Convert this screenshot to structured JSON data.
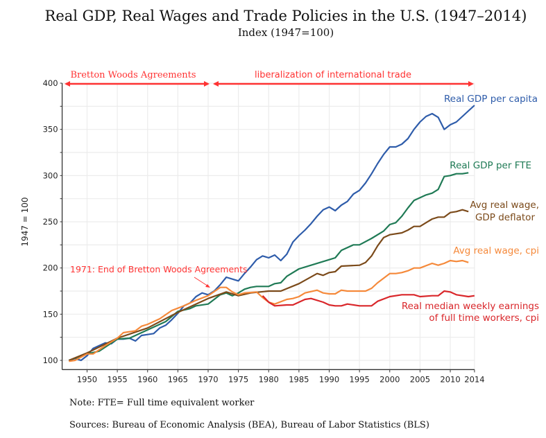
{
  "chart_data": {
    "type": "line",
    "title": "Real GDP, Real Wages and Trade Policies in the U.S. (1947–2014)",
    "subtitle": "Index (1947=100)",
    "ylabel": "1947 = 100",
    "xlabel": "",
    "xlim": [
      1946,
      2014
    ],
    "ylim": [
      90,
      400
    ],
    "x_ticks": [
      1950,
      1955,
      1960,
      1965,
      1970,
      1975,
      1980,
      1985,
      1990,
      1995,
      2000,
      2005,
      2010,
      2014
    ],
    "y_ticks": [
      100,
      150,
      200,
      250,
      300,
      350,
      400
    ],
    "grid": true,
    "series": [
      {
        "name": "Real GDP per capita",
        "color": "#2e5caa",
        "points": [
          [
            1947,
            100
          ],
          [
            1948,
            102
          ],
          [
            1949,
            100
          ],
          [
            1950,
            105
          ],
          [
            1951,
            113
          ],
          [
            1952,
            116
          ],
          [
            1953,
            119
          ],
          [
            1954,
            118
          ],
          [
            1955,
            123
          ],
          [
            1956,
            123
          ],
          [
            1957,
            124
          ],
          [
            1958,
            121
          ],
          [
            1959,
            127
          ],
          [
            1960,
            128
          ],
          [
            1961,
            129
          ],
          [
            1962,
            135
          ],
          [
            1963,
            138
          ],
          [
            1964,
            144
          ],
          [
            1965,
            151
          ],
          [
            1966,
            159
          ],
          [
            1967,
            162
          ],
          [
            1968,
            169
          ],
          [
            1969,
            173
          ],
          [
            1970,
            171
          ],
          [
            1971,
            175
          ],
          [
            1972,
            182
          ],
          [
            1973,
            190
          ],
          [
            1974,
            188
          ],
          [
            1975,
            186
          ],
          [
            1976,
            194
          ],
          [
            1977,
            201
          ],
          [
            1978,
            209
          ],
          [
            1979,
            213
          ],
          [
            1980,
            211
          ],
          [
            1981,
            214
          ],
          [
            1982,
            208
          ],
          [
            1983,
            215
          ],
          [
            1984,
            228
          ],
          [
            1985,
            235
          ],
          [
            1986,
            241
          ],
          [
            1987,
            248
          ],
          [
            1988,
            256
          ],
          [
            1989,
            263
          ],
          [
            1990,
            266
          ],
          [
            1991,
            262
          ],
          [
            1992,
            268
          ],
          [
            1993,
            272
          ],
          [
            1994,
            280
          ],
          [
            1995,
            284
          ],
          [
            1996,
            292
          ],
          [
            1997,
            302
          ],
          [
            1998,
            313
          ],
          [
            1999,
            323
          ],
          [
            2000,
            331
          ],
          [
            2001,
            331
          ],
          [
            2002,
            334
          ],
          [
            2003,
            340
          ],
          [
            2004,
            350
          ],
          [
            2005,
            358
          ],
          [
            2006,
            364
          ],
          [
            2007,
            367
          ],
          [
            2008,
            363
          ],
          [
            2009,
            350
          ],
          [
            2010,
            355
          ],
          [
            2011,
            358
          ],
          [
            2012,
            364
          ],
          [
            2013,
            370
          ],
          [
            2014,
            376
          ]
        ]
      },
      {
        "name": "Real GDP per FTE",
        "color": "#1f7a55",
        "points": [
          [
            1947,
            100
          ],
          [
            1950,
            107
          ],
          [
            1952,
            110
          ],
          [
            1955,
            123
          ],
          [
            1957,
            124
          ],
          [
            1960,
            133
          ],
          [
            1963,
            142
          ],
          [
            1965,
            153
          ],
          [
            1967,
            156
          ],
          [
            1968,
            159
          ],
          [
            1970,
            161
          ],
          [
            1972,
            171
          ],
          [
            1973,
            173
          ],
          [
            1974,
            170
          ],
          [
            1975,
            173
          ],
          [
            1976,
            177
          ],
          [
            1977,
            179
          ],
          [
            1978,
            180
          ],
          [
            1980,
            180
          ],
          [
            1981,
            183
          ],
          [
            1982,
            184
          ],
          [
            1983,
            191
          ],
          [
            1985,
            199
          ],
          [
            1987,
            203
          ],
          [
            1990,
            209
          ],
          [
            1991,
            211
          ],
          [
            1992,
            219
          ],
          [
            1994,
            225
          ],
          [
            1995,
            225
          ],
          [
            1997,
            232
          ],
          [
            1999,
            240
          ],
          [
            2000,
            247
          ],
          [
            2001,
            249
          ],
          [
            2002,
            256
          ],
          [
            2003,
            265
          ],
          [
            2004,
            273
          ],
          [
            2005,
            276
          ],
          [
            2006,
            279
          ],
          [
            2007,
            281
          ],
          [
            2008,
            285
          ],
          [
            2009,
            299
          ],
          [
            2010,
            300
          ],
          [
            2011,
            302
          ],
          [
            2012,
            302
          ],
          [
            2013,
            303
          ]
        ]
      },
      {
        "name": "Avg real wage, GDP deflator",
        "color": "#7b4a1a",
        "points": [
          [
            1947,
            100
          ],
          [
            1950,
            108
          ],
          [
            1955,
            124
          ],
          [
            1960,
            135
          ],
          [
            1965,
            152
          ],
          [
            1970,
            167
          ],
          [
            1973,
            174
          ],
          [
            1975,
            170
          ],
          [
            1977,
            173
          ],
          [
            1980,
            175
          ],
          [
            1982,
            175
          ],
          [
            1985,
            183
          ],
          [
            1988,
            194
          ],
          [
            1989,
            192
          ],
          [
            1990,
            195
          ],
          [
            1991,
            196
          ],
          [
            1992,
            202
          ],
          [
            1995,
            203
          ],
          [
            1996,
            206
          ],
          [
            1997,
            213
          ],
          [
            1998,
            224
          ],
          [
            1999,
            233
          ],
          [
            2000,
            236
          ],
          [
            2002,
            238
          ],
          [
            2003,
            241
          ],
          [
            2004,
            245
          ],
          [
            2005,
            245
          ],
          [
            2006,
            249
          ],
          [
            2007,
            253
          ],
          [
            2008,
            255
          ],
          [
            2009,
            255
          ],
          [
            2010,
            260
          ],
          [
            2011,
            261
          ],
          [
            2012,
            263
          ],
          [
            2013,
            261
          ]
        ]
      },
      {
        "name": "Avg real wage, cpi",
        "color": "#f5893a",
        "points": [
          [
            1947,
            99
          ],
          [
            1948,
            100
          ],
          [
            1950,
            107
          ],
          [
            1951,
            107
          ],
          [
            1953,
            116
          ],
          [
            1955,
            124
          ],
          [
            1956,
            130
          ],
          [
            1958,
            132
          ],
          [
            1959,
            137
          ],
          [
            1960,
            139
          ],
          [
            1962,
            145
          ],
          [
            1964,
            154
          ],
          [
            1966,
            159
          ],
          [
            1968,
            165
          ],
          [
            1970,
            170
          ],
          [
            1972,
            179
          ],
          [
            1973,
            179
          ],
          [
            1974,
            174
          ],
          [
            1975,
            171
          ],
          [
            1976,
            173
          ],
          [
            1978,
            174
          ],
          [
            1979,
            168
          ],
          [
            1980,
            163
          ],
          [
            1981,
            161
          ],
          [
            1983,
            166
          ],
          [
            1984,
            167
          ],
          [
            1985,
            169
          ],
          [
            1986,
            173
          ],
          [
            1988,
            176
          ],
          [
            1989,
            173
          ],
          [
            1990,
            172
          ],
          [
            1991,
            172
          ],
          [
            1992,
            176
          ],
          [
            1993,
            175
          ],
          [
            1996,
            175
          ],
          [
            1997,
            178
          ],
          [
            1998,
            184
          ],
          [
            2000,
            194
          ],
          [
            2001,
            194
          ],
          [
            2002,
            195
          ],
          [
            2003,
            197
          ],
          [
            2004,
            200
          ],
          [
            2005,
            200
          ],
          [
            2007,
            205
          ],
          [
            2008,
            203
          ],
          [
            2009,
            205
          ],
          [
            2010,
            208
          ],
          [
            2011,
            207
          ],
          [
            2012,
            208
          ],
          [
            2013,
            206
          ]
        ]
      },
      {
        "name": "Real median weekly earnings of full time workers, cpi",
        "color": "#d9262a",
        "points": [
          [
            1979,
            170
          ],
          [
            1980,
            163
          ],
          [
            1981,
            159
          ],
          [
            1983,
            160
          ],
          [
            1984,
            160
          ],
          [
            1985,
            163
          ],
          [
            1986,
            166
          ],
          [
            1987,
            167
          ],
          [
            1989,
            163
          ],
          [
            1990,
            160
          ],
          [
            1991,
            159
          ],
          [
            1992,
            159
          ],
          [
            1993,
            161
          ],
          [
            1995,
            159
          ],
          [
            1997,
            159
          ],
          [
            1998,
            164
          ],
          [
            2000,
            169
          ],
          [
            2002,
            171
          ],
          [
            2004,
            171
          ],
          [
            2005,
            169
          ],
          [
            2007,
            170
          ],
          [
            2008,
            170
          ],
          [
            2009,
            175
          ],
          [
            2010,
            174
          ],
          [
            2011,
            171
          ],
          [
            2013,
            169
          ],
          [
            2014,
            170
          ]
        ]
      }
    ],
    "series_labels": {
      "gdp_capita": "Real GDP per capita",
      "gdp_fte": "Real GDP per FTE",
      "wage_deflator_1": "Avg real wage,",
      "wage_deflator_2": "GDP deflator",
      "wage_cpi": "Avg real wage, cpi",
      "median_1": "Real median weekly earnings",
      "median_2": "of full time workers, cpi"
    },
    "annotations": {
      "period_1": "Bretton Woods Agreements",
      "period_2": "liberalization of international trade",
      "event": "1971: End of Bretton Woods Agreements",
      "annotation_color": "#ff3333"
    }
  },
  "notes": {
    "note": "Note: FTE= Full time equivalent worker",
    "sources": "Sources: Bureau of Economic Analysis (BEA), Bureau of Labor Statistics (BLS)"
  }
}
